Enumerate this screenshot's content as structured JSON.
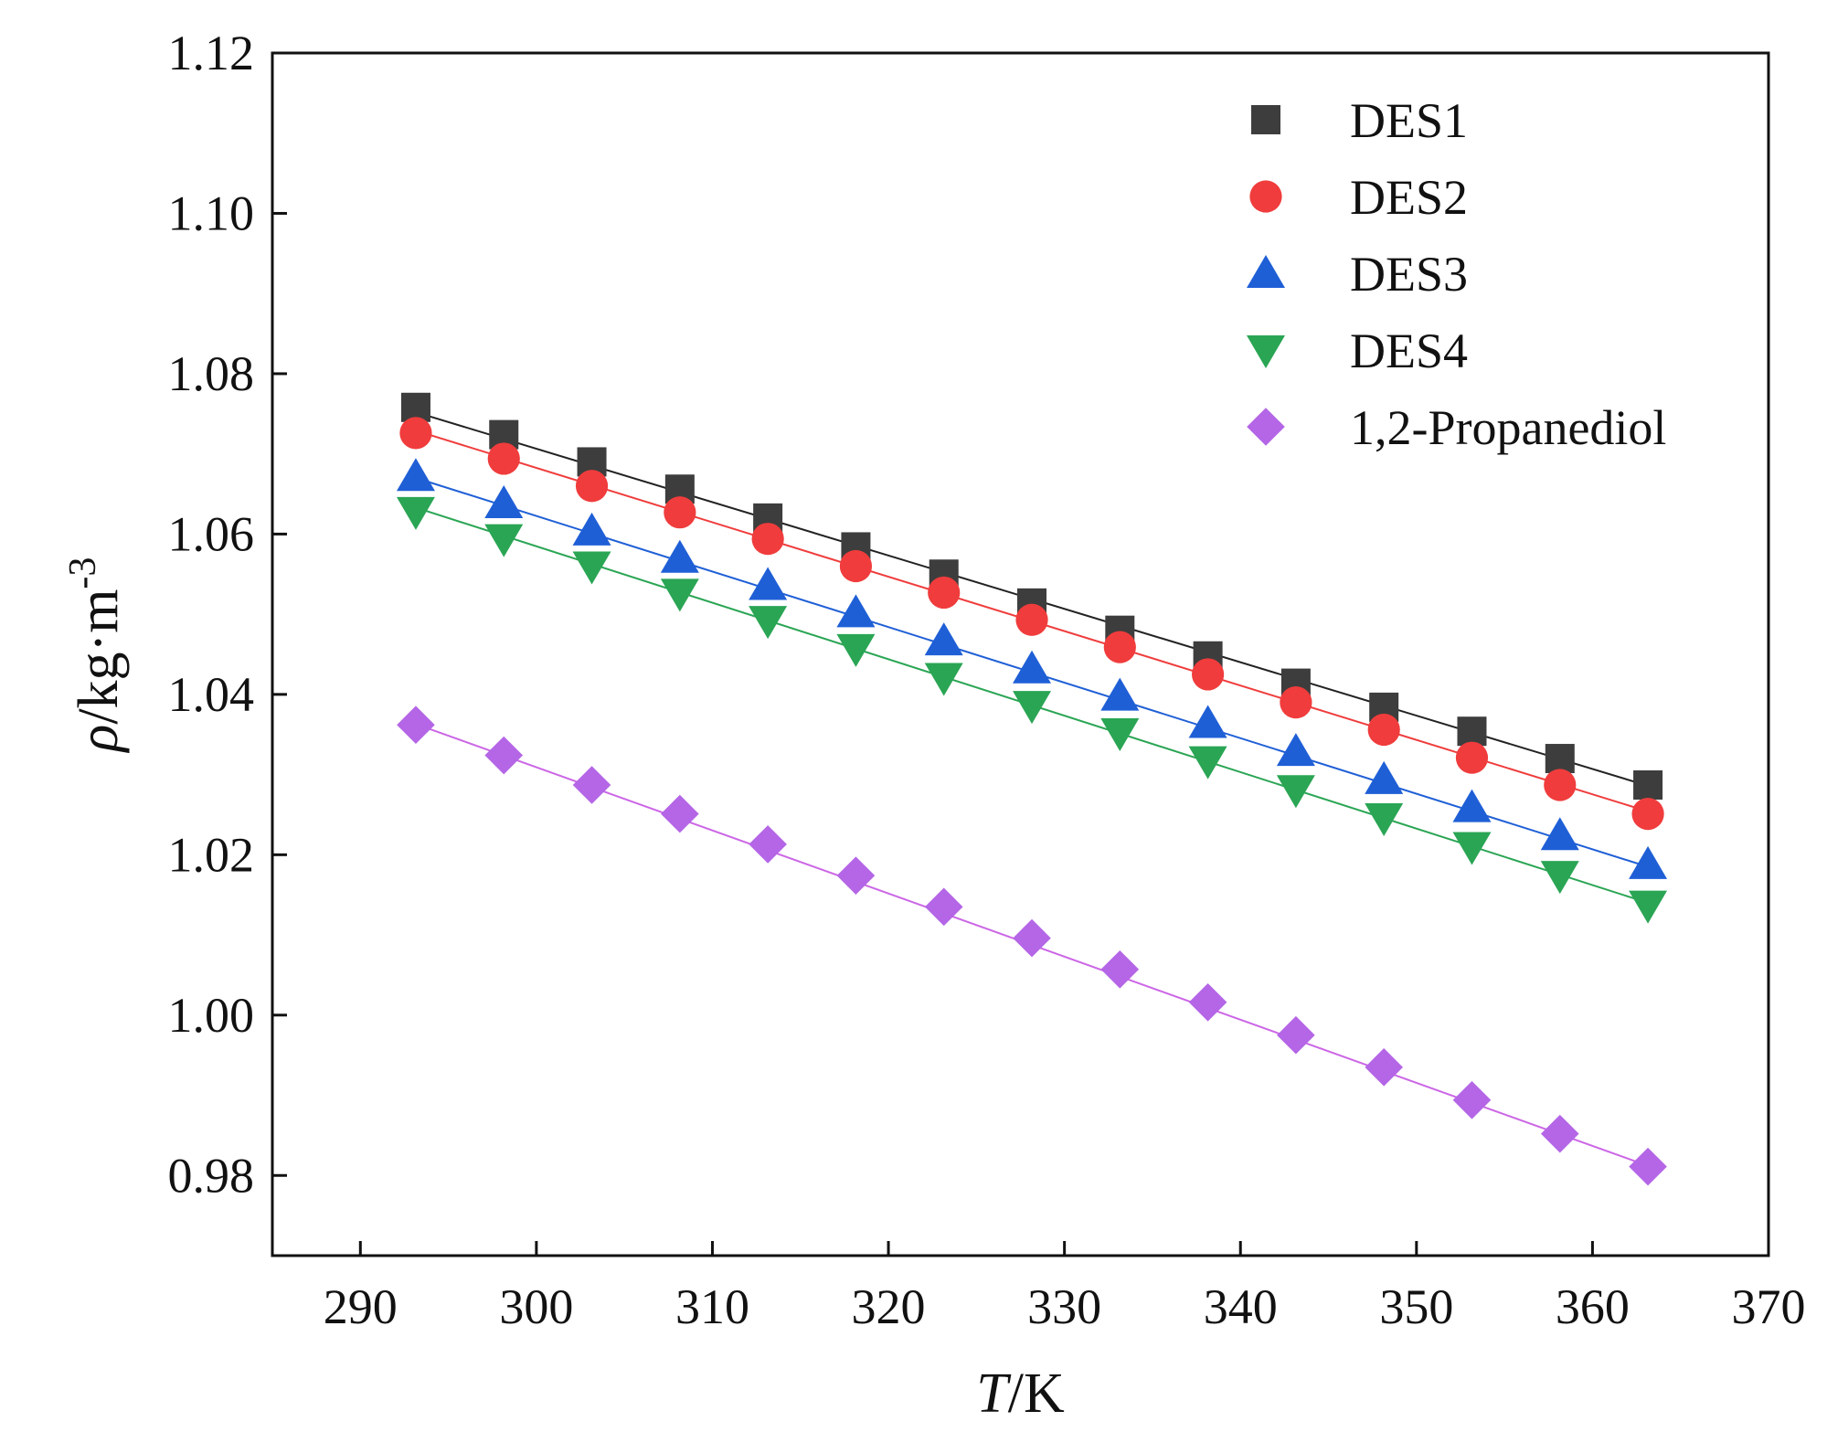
{
  "chart_data": {
    "type": "scatter",
    "title": "",
    "xlabel": "T/K",
    "xlabel_italic": "T",
    "xlabel_rest": "/K",
    "ylabel": "ρ /kg·m-3",
    "ylabel_symbol": "ρ",
    "ylabel_unit": "/kg·m",
    "ylabel_exp": "-3",
    "xlim": [
      285,
      370
    ],
    "ylim": [
      0.97,
      1.12
    ],
    "xticks": [
      290,
      300,
      310,
      320,
      330,
      340,
      350,
      360,
      370
    ],
    "xtick_labels": [
      "290",
      "300",
      "310",
      "320",
      "330",
      "340",
      "350",
      "360",
      "370"
    ],
    "yticks": [
      0.98,
      1.0,
      1.02,
      1.04,
      1.06,
      1.08,
      1.1,
      1.12
    ],
    "ytick_labels": [
      "0.98",
      "1.00",
      "1.02",
      "1.04",
      "1.06",
      "1.08",
      "1.10",
      "1.12"
    ],
    "grid": false,
    "legend_position": "top-right",
    "x": [
      293.15,
      298.15,
      303.15,
      308.15,
      313.15,
      318.15,
      323.15,
      328.15,
      333.15,
      338.15,
      343.15,
      348.15,
      353.15,
      358.15,
      363.15
    ],
    "series": [
      {
        "name": "DES1",
        "marker": "square",
        "color": "#3d3d3d",
        "line_color": "#222222",
        "values": [
          1.0758,
          1.0724,
          1.069,
          1.0656,
          1.062,
          1.0584,
          1.055,
          1.0514,
          1.048,
          1.0448,
          1.0414,
          1.0384,
          1.0354,
          1.032,
          1.0287
        ],
        "fit": [
          1.0752,
          1.0286
        ]
      },
      {
        "name": "DES2",
        "marker": "circle",
        "color": "#f03c3c",
        "line_color": "#f03c3c",
        "values": [
          1.0726,
          1.0694,
          1.066,
          1.0627,
          1.0594,
          1.056,
          1.0527,
          1.0493,
          1.0459,
          1.0425,
          1.039,
          1.0356,
          1.0321,
          1.0287,
          1.0251
        ],
        "fit": [
          1.0729,
          1.0254
        ]
      },
      {
        "name": "DES3",
        "marker": "triangle-up",
        "color": "#1f5fd6",
        "line_color": "#1f5fd6",
        "values": [
          1.0672,
          1.0638,
          1.0604,
          1.057,
          1.0536,
          1.0502,
          1.0467,
          1.0432,
          1.0398,
          1.0364,
          1.0329,
          1.0294,
          1.0259,
          1.0224,
          1.0188
        ],
        "fit": [
          1.067,
          1.0185
        ]
      },
      {
        "name": "DES4",
        "marker": "triangle-down",
        "color": "#2aa554",
        "line_color": "#2aa554",
        "values": [
          1.0628,
          1.0594,
          1.056,
          1.0526,
          1.0492,
          1.0457,
          1.0421,
          1.0386,
          1.0352,
          1.0317,
          1.0281,
          1.0246,
          1.021,
          1.0174,
          1.0137
        ],
        "fit": [
          1.0633,
          1.014
        ]
      },
      {
        "name": "1,2-Propanediol",
        "marker": "diamond",
        "color": "#b466e6",
        "line_color": "#cc66e6",
        "values": [
          1.0362,
          1.0324,
          1.0287,
          1.0251,
          1.0213,
          1.0174,
          1.0135,
          1.0096,
          1.0057,
          1.0016,
          0.9975,
          0.9935,
          0.9894,
          0.9852,
          0.9811
        ],
        "fit": [
          1.0363,
          0.9812
        ]
      }
    ]
  }
}
